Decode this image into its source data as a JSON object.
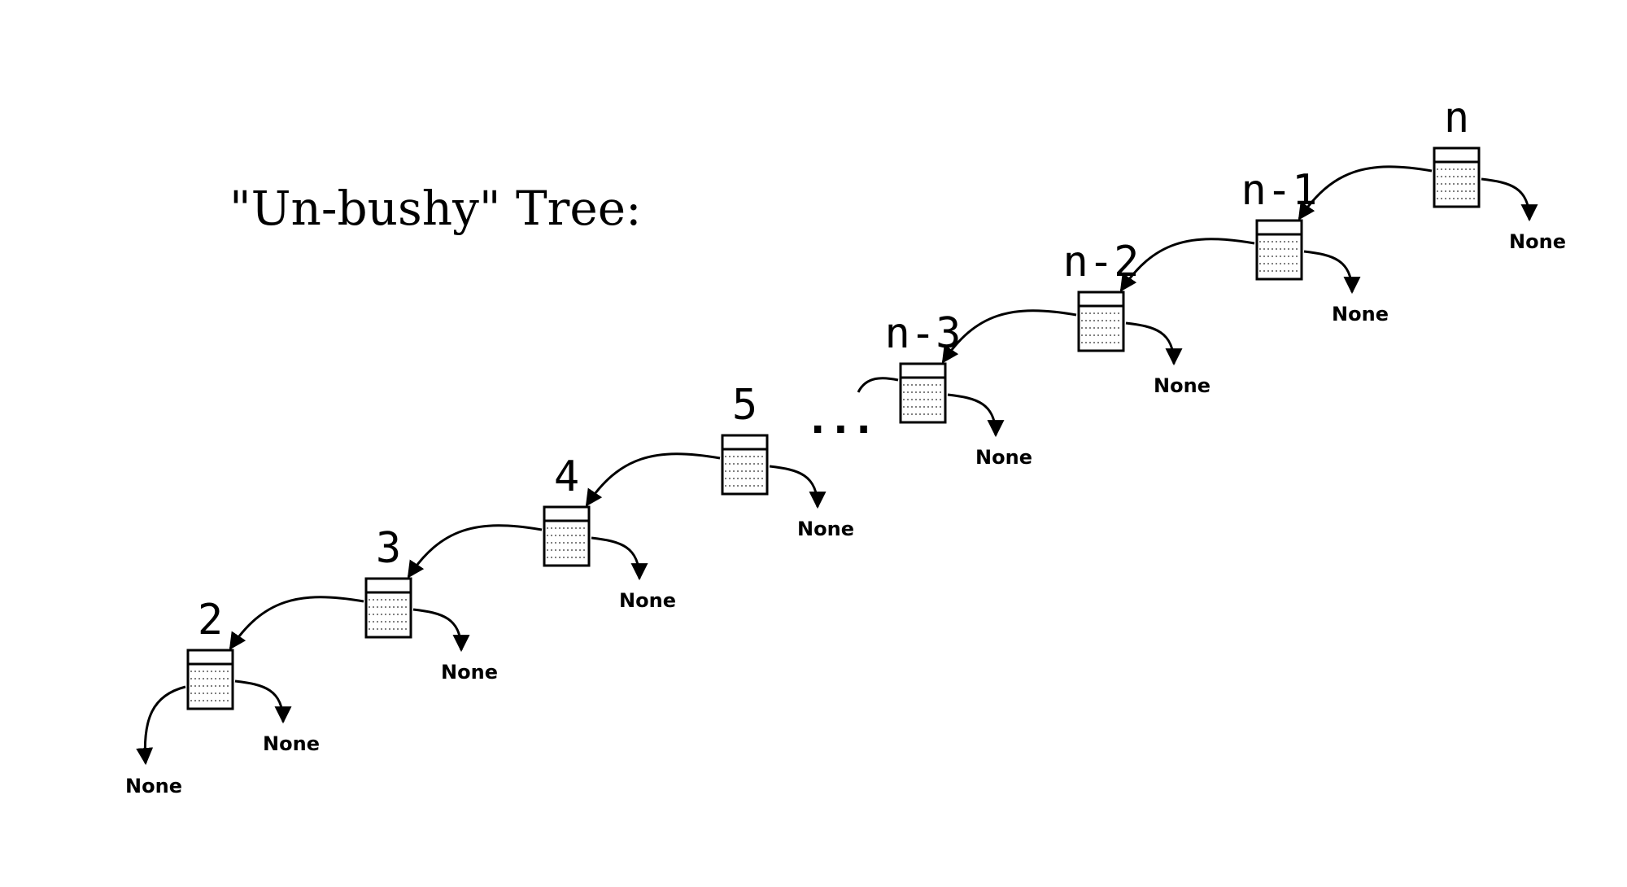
{
  "title": "\"Un-bushy\" Tree:",
  "ellipsis": "...",
  "none_label": "None",
  "nodes": [
    {
      "id": "2",
      "label": "2",
      "left_none": true
    },
    {
      "id": "3",
      "label": "3",
      "left_none": false
    },
    {
      "id": "4",
      "label": "4",
      "left_none": false
    },
    {
      "id": "5",
      "label": "5",
      "left_none": false
    },
    {
      "id": "n-3",
      "label": "n-3",
      "left_none": false
    },
    {
      "id": "n-2",
      "label": "n-2",
      "left_none": false
    },
    {
      "id": "n-1",
      "label": "n-1",
      "left_none": false
    },
    {
      "id": "n",
      "label": "n",
      "left_none": false
    }
  ],
  "edges": [
    {
      "from": "3",
      "to": "2",
      "side": "left"
    },
    {
      "from": "4",
      "to": "3",
      "side": "left"
    },
    {
      "from": "5",
      "to": "4",
      "side": "left"
    },
    {
      "from": "n-2",
      "to": "n-3",
      "side": "left"
    },
    {
      "from": "n-1",
      "to": "n-2",
      "side": "left"
    },
    {
      "from": "n",
      "to": "n-1",
      "side": "left"
    }
  ]
}
